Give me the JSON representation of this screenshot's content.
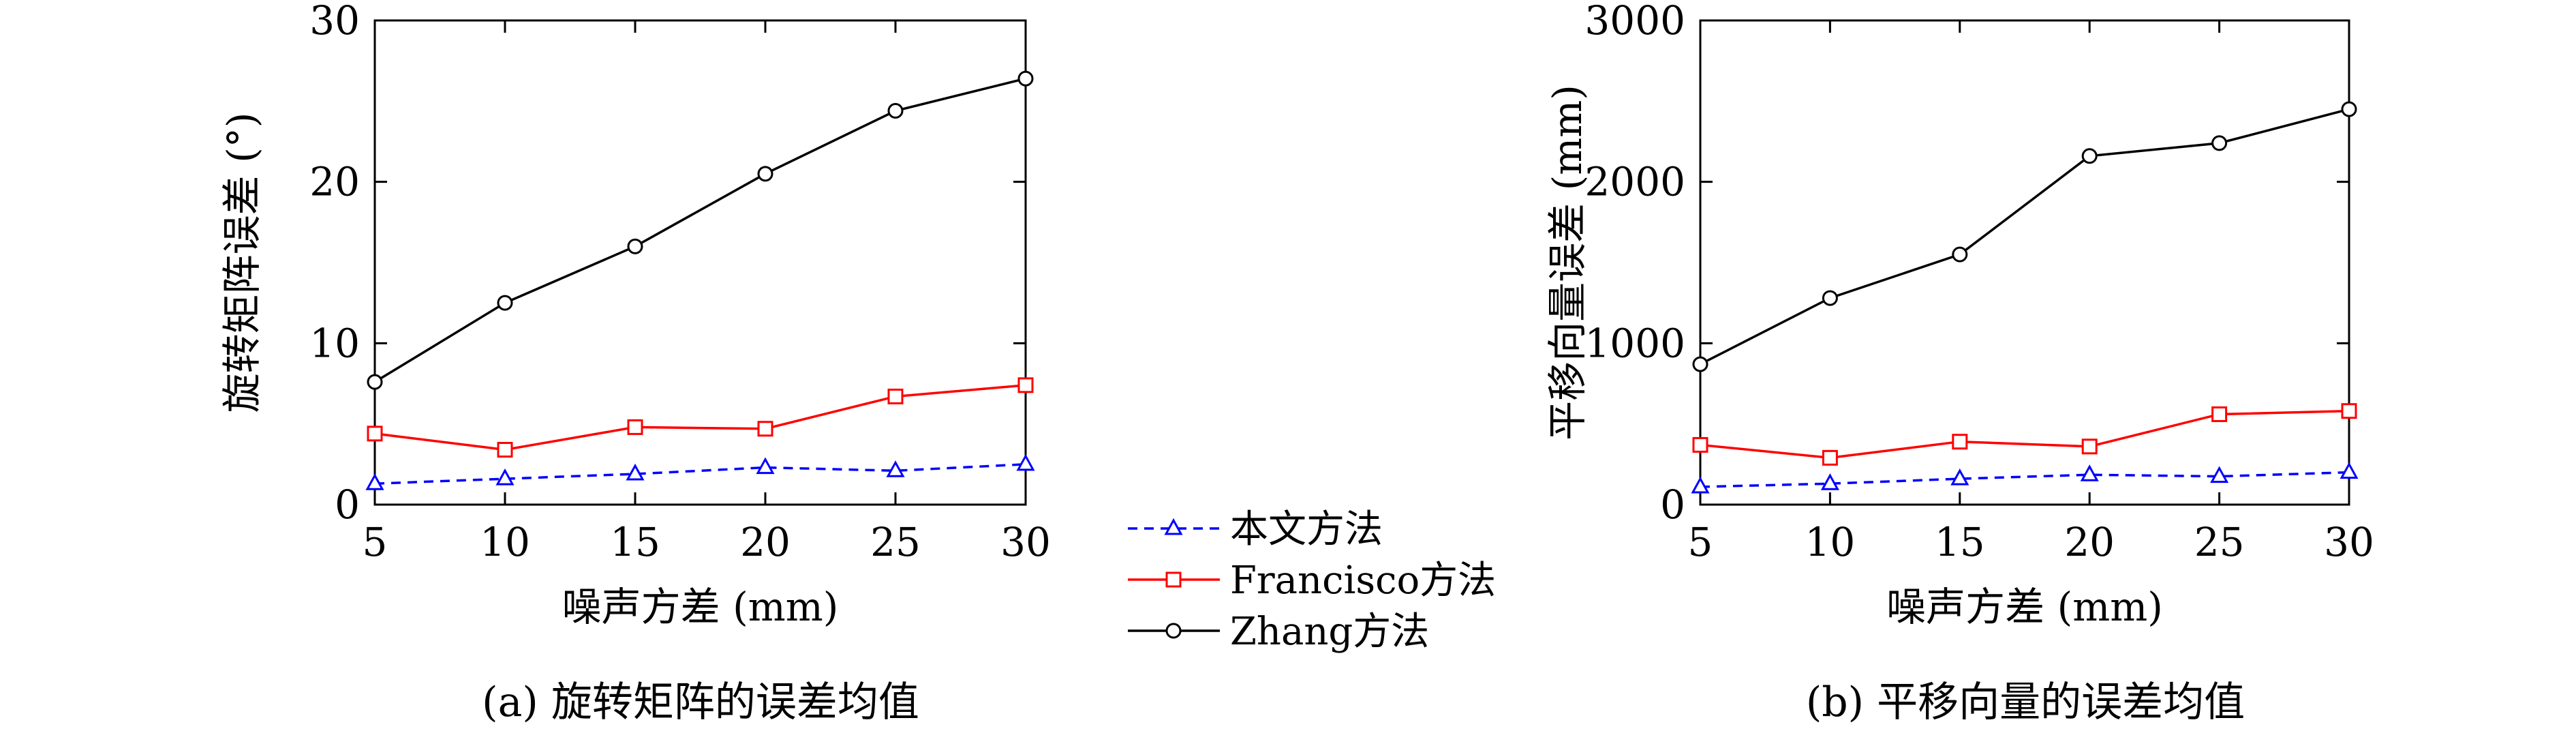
{
  "chart_data": [
    {
      "type": "line",
      "caption": "(a) 旋转矩阵的误差均值",
      "xlabel": "噪声方差 (mm)",
      "ylabel": "旋转矩阵误差 (°)",
      "x": [
        5,
        10,
        15,
        20,
        25,
        30
      ],
      "xlim": [
        5,
        30
      ],
      "ylim": [
        0,
        30
      ],
      "xticks": [
        "5",
        "10",
        "15",
        "20",
        "25",
        "30"
      ],
      "yticks": [
        "0",
        "10",
        "20",
        "30"
      ],
      "series": [
        {
          "name": "本文方法",
          "values": [
            1.3,
            1.6,
            1.9,
            2.3,
            2.1,
            2.5
          ]
        },
        {
          "name": "Francisco方法",
          "values": [
            4.4,
            3.4,
            4.8,
            4.7,
            6.7,
            7.4
          ]
        },
        {
          "name": "Zhang方法",
          "values": [
            7.6,
            12.5,
            16.0,
            20.5,
            24.4,
            26.4
          ]
        }
      ]
    },
    {
      "type": "line",
      "caption": "(b) 平移向量的误差均值",
      "xlabel": "噪声方差 (mm)",
      "ylabel": "平移向量误差 (mm)",
      "x": [
        5,
        10,
        15,
        20,
        25,
        30
      ],
      "xlim": [
        5,
        30
      ],
      "ylim": [
        0,
        3000
      ],
      "xticks": [
        "5",
        "10",
        "15",
        "20",
        "25",
        "30"
      ],
      "yticks": [
        "0",
        "1000",
        "2000",
        "3000"
      ],
      "series": [
        {
          "name": "本文方法",
          "values": [
            110,
            130,
            160,
            185,
            175,
            200
          ]
        },
        {
          "name": "Francisco方法",
          "values": [
            370,
            290,
            390,
            360,
            560,
            580
          ]
        },
        {
          "name": "Zhang方法",
          "values": [
            870,
            1280,
            1550,
            2160,
            2240,
            2450
          ]
        }
      ]
    }
  ],
  "legend": {
    "items": [
      {
        "label": "本文方法",
        "color": "#0000ff",
        "marker": "triangle",
        "dash": true
      },
      {
        "label": "Francisco方法",
        "color": "#ff0000",
        "marker": "square",
        "dash": false
      },
      {
        "label": "Zhang方法",
        "color": "#000000",
        "marker": "circle",
        "dash": false
      }
    ]
  }
}
